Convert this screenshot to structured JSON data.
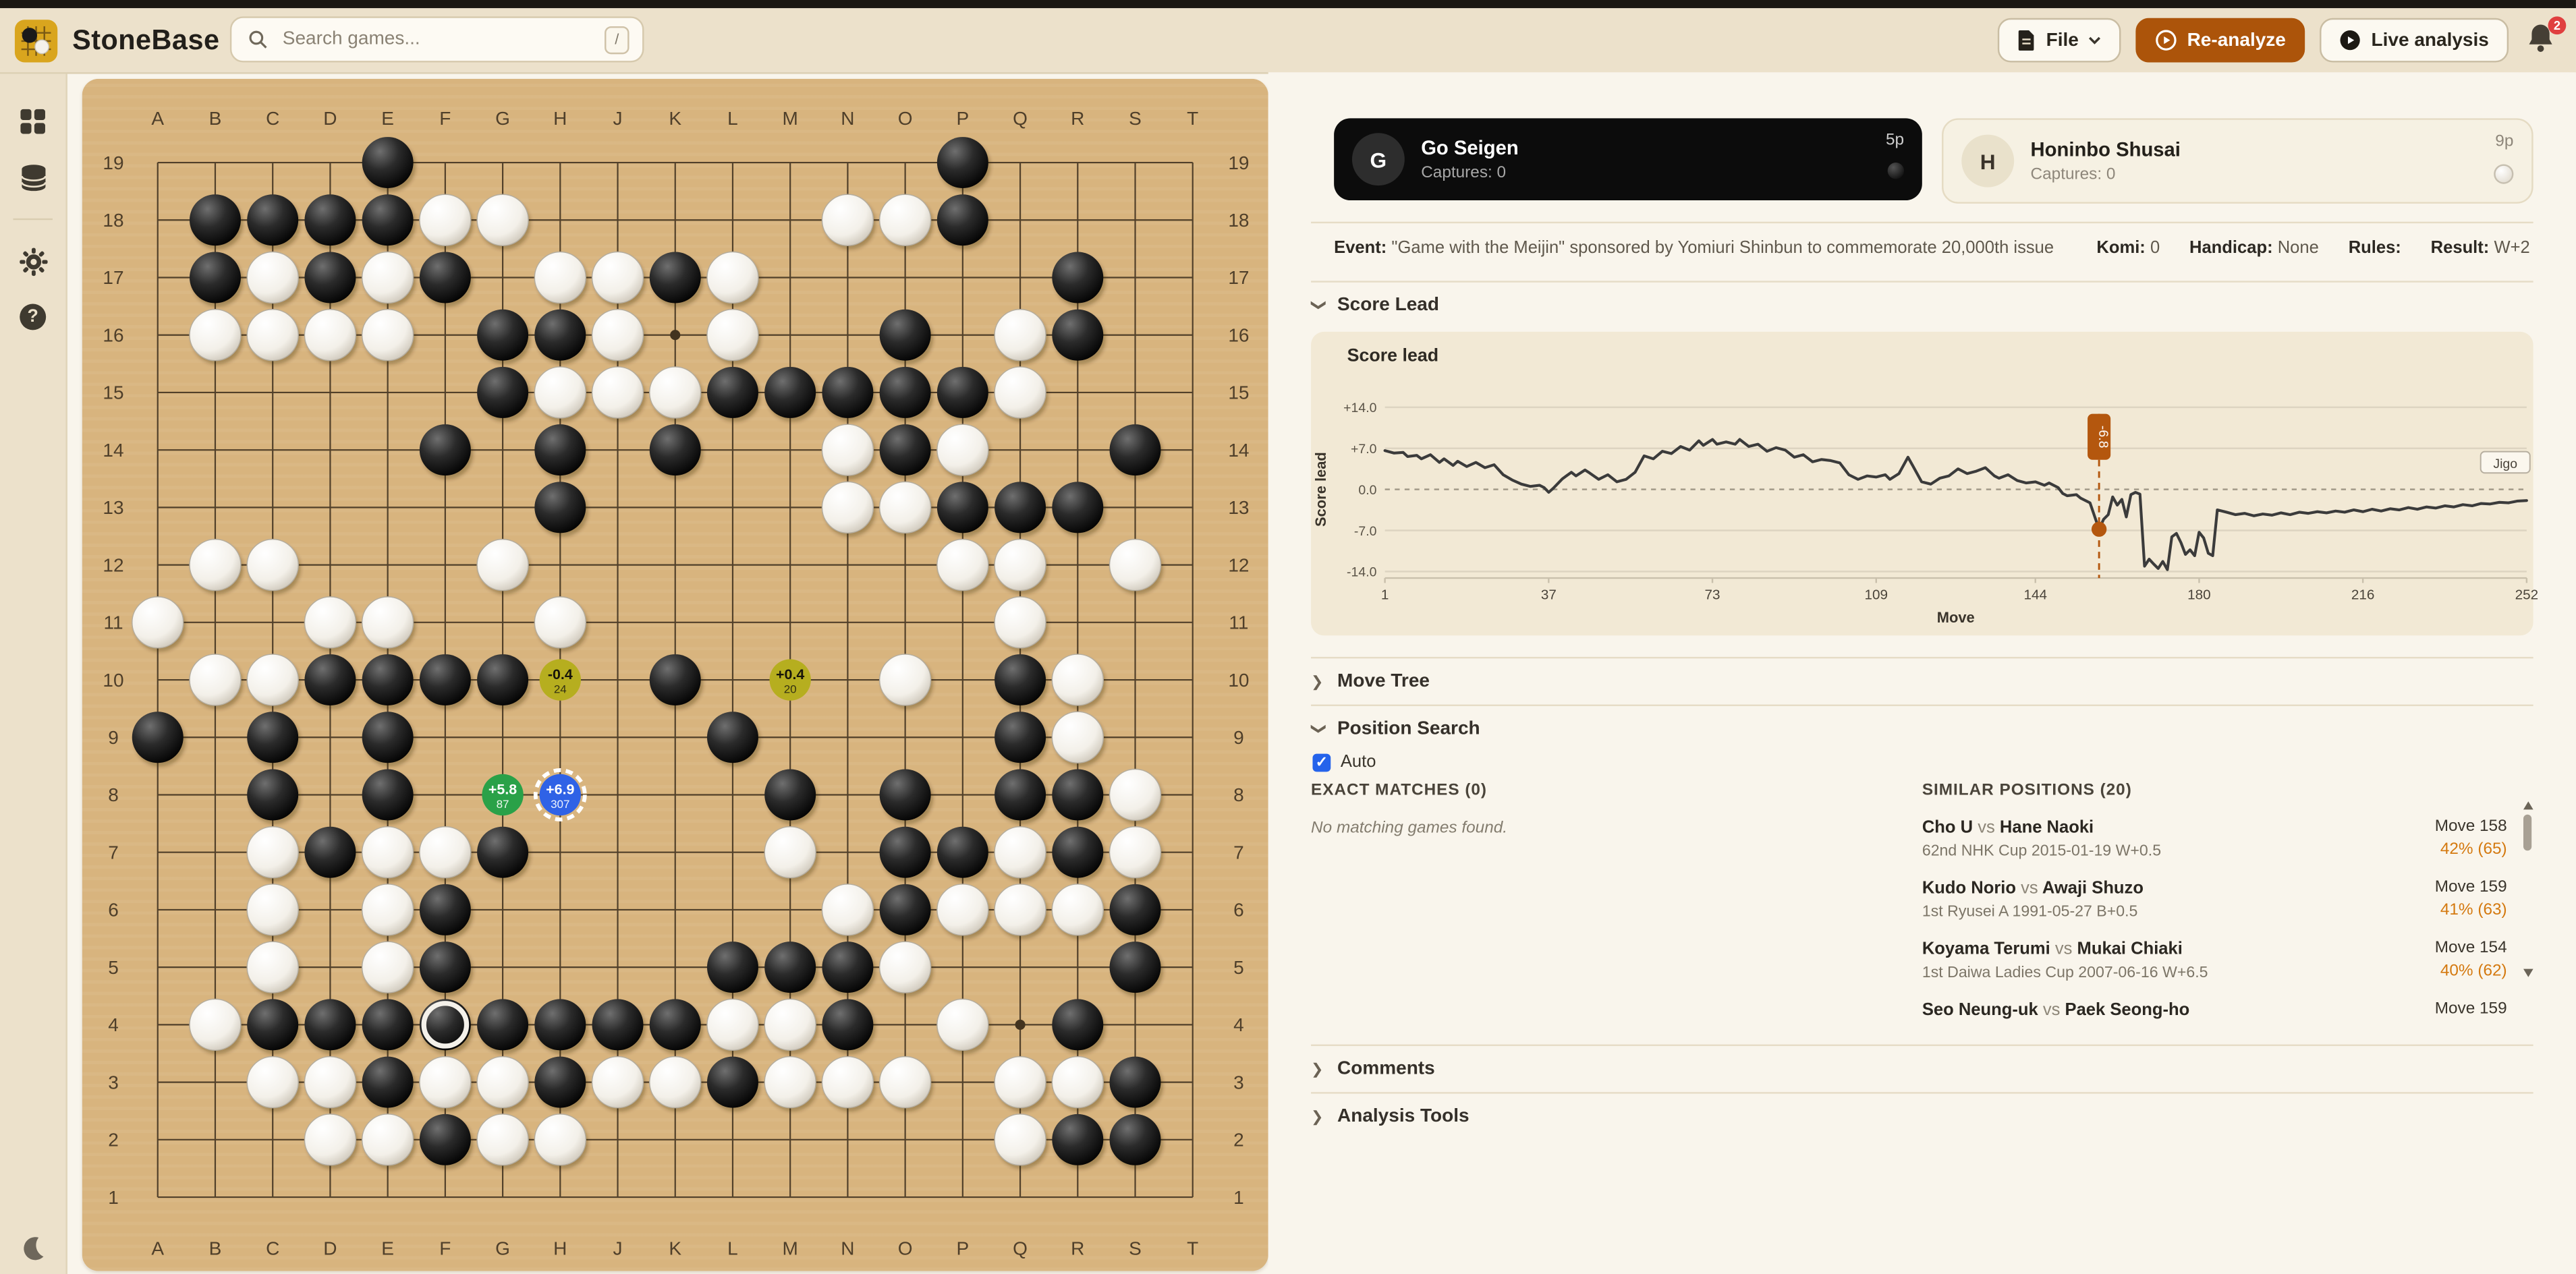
{
  "topbar": {
    "app_name": "StoneBase",
    "search_placeholder": "Search games...",
    "search_shortcut": "/",
    "file_label": "File",
    "reanalyze_label": "Re-analyze",
    "live_label": "Live analysis",
    "notification_count": "2"
  },
  "sidebar": {
    "icons": [
      "apps-grid-icon",
      "database-icon",
      "gear-icon",
      "help-icon",
      "moon-icon"
    ]
  },
  "players": {
    "black": {
      "initial": "G",
      "name": "Go Seigen",
      "captures": "Captures: 0",
      "rank": "5p"
    },
    "white": {
      "initial": "H",
      "name": "Honinbo Shusai",
      "captures": "Captures: 0",
      "rank": "9p"
    }
  },
  "game_meta": {
    "event_label": "Event:",
    "event": "\"Game with the Meijin\" sponsored by Yomiuri Shinbun to commemorate 20,000th issue",
    "komi_label": "Komi:",
    "komi": "0",
    "handicap_label": "Handicap:",
    "handicap": "None",
    "rules_label": "Rules:",
    "rules": "",
    "result_label": "Result:",
    "result": "W+2"
  },
  "sections": {
    "score_lead": "Score Lead",
    "move_tree": "Move Tree",
    "position_search": "Position Search",
    "comments": "Comments",
    "analysis_tools": "Analysis Tools",
    "auto_label": "Auto",
    "exact_heading": "EXACT MATCHES (0)",
    "exact_empty": "No matching games found.",
    "similar_heading": "SIMILAR POSITIONS (20)"
  },
  "similar_positions": [
    {
      "p1": "Cho U",
      "p2": "Hane Naoki",
      "detail": "62nd NHK Cup   2015-01-19   W+0.5",
      "move": "Move 158",
      "match": "42% (65)"
    },
    {
      "p1": "Kudo Norio",
      "p2": "Awaji Shuzo",
      "detail": "1st Ryusei A   1991-05-27   B+0.5",
      "move": "Move 159",
      "match": "41% (63)"
    },
    {
      "p1": "Koyama Terumi",
      "p2": "Mukai Chiaki",
      "detail": "1st Daiwa Ladies Cup   2007-06-16   W+6.5",
      "move": "Move 154",
      "match": "40% (62)"
    },
    {
      "p1": "Seo Neung-uk",
      "p2": "Paek Seong-ho",
      "detail": "",
      "move": "Move 159",
      "match": ""
    }
  ],
  "board": {
    "letters": [
      "A",
      "B",
      "C",
      "D",
      "E",
      "F",
      "G",
      "H",
      "J",
      "K",
      "L",
      "M",
      "N",
      "O",
      "P",
      "Q",
      "R",
      "S",
      "T"
    ],
    "numbers": [
      19,
      18,
      17,
      16,
      15,
      14,
      13,
      12,
      11,
      10,
      9,
      8,
      7,
      6,
      5,
      4,
      3,
      2,
      1
    ],
    "star_points": [
      "K16",
      "Q4"
    ],
    "last_move": "F4",
    "black_stones": [
      "E19",
      "P19",
      "B18",
      "C18",
      "D18",
      "E18",
      "P18",
      "B17",
      "D17",
      "F17",
      "K17",
      "R17",
      "G16",
      "H16",
      "O16",
      "R16",
      "G15",
      "L15",
      "M15",
      "N15",
      "O15",
      "P15",
      "F14",
      "H14",
      "K14",
      "O14",
      "S14",
      "H13",
      "P13",
      "Q13",
      "R13",
      "D10",
      "E10",
      "F10",
      "G10",
      "K10",
      "Q10",
      "A9",
      "C9",
      "E9",
      "L9",
      "Q9",
      "C8",
      "E8",
      "M8",
      "O8",
      "Q8",
      "R8",
      "D7",
      "G7",
      "O7",
      "P7",
      "R7",
      "F6",
      "O6",
      "S6",
      "F5",
      "L5",
      "M5",
      "N5",
      "S5",
      "C4",
      "D4",
      "E4",
      "F4",
      "G4",
      "H4",
      "J4",
      "K4",
      "N4",
      "R4",
      "E3",
      "H3",
      "L3",
      "S3",
      "F2",
      "R2",
      "S2"
    ],
    "white_stones": [
      "F18",
      "G18",
      "N18",
      "O18",
      "C17",
      "E17",
      "H17",
      "J17",
      "L17",
      "B16",
      "C16",
      "D16",
      "E16",
      "J16",
      "L16",
      "Q16",
      "H15",
      "J15",
      "K15",
      "Q15",
      "N14",
      "P14",
      "N13",
      "O13",
      "B12",
      "C12",
      "G12",
      "P12",
      "Q12",
      "S12",
      "A11",
      "D11",
      "E11",
      "H11",
      "Q11",
      "B10",
      "C10",
      "O10",
      "R10",
      "R9",
      "S8",
      "C7",
      "E7",
      "F7",
      "M7",
      "Q7",
      "S7",
      "C6",
      "E6",
      "N6",
      "P6",
      "Q6",
      "R6",
      "C5",
      "E5",
      "O5",
      "B4",
      "L4",
      "M4",
      "P4",
      "C3",
      "D3",
      "F3",
      "G3",
      "J3",
      "K3",
      "M3",
      "N3",
      "O3",
      "Q3",
      "R3",
      "D2",
      "E2",
      "G2",
      "H2",
      "Q2"
    ],
    "badges": [
      {
        "pos": "H10",
        "style": "yellow",
        "score": "-0.4",
        "visits": "24",
        "selected": false
      },
      {
        "pos": "M10",
        "style": "yellow",
        "score": "+0.4",
        "visits": "20",
        "selected": false
      },
      {
        "pos": "G8",
        "style": "green",
        "score": "+5.8",
        "visits": "87",
        "selected": false
      },
      {
        "pos": "H8",
        "style": "blue",
        "score": "+6.9",
        "visits": "307",
        "selected": true
      }
    ],
    "colors": {
      "wood": "#d8b47e",
      "line": "#51402a",
      "label": "#4f3f2a",
      "yellow": "#b6ae1f",
      "green": "#2aa148",
      "blue": "#2f62e6",
      "accent_orange": "#ac540a"
    }
  },
  "chart_data": {
    "type": "line",
    "title": "Score lead",
    "xlabel": "Move",
    "ylabel": "Score lead",
    "xlim": [
      1,
      252
    ],
    "ylim": [
      -14,
      14
    ],
    "grid": true,
    "yticks": [
      {
        "v": 14,
        "label": "+14.0"
      },
      {
        "v": 7,
        "label": "+7.0"
      },
      {
        "v": 0,
        "label": "0.0"
      },
      {
        "v": -7,
        "label": "-7.0"
      },
      {
        "v": -14,
        "label": "-14.0"
      }
    ],
    "xticks": [
      1,
      37,
      73,
      109,
      144,
      180,
      216,
      252
    ],
    "zero_annotation": "Jigo",
    "marker": {
      "move": 158,
      "value": -6.8,
      "label": "-6.8",
      "color": "#b4570e"
    },
    "series": [
      {
        "name": "Score lead",
        "color": "#3b3b3b",
        "points": [
          [
            1,
            6.6
          ],
          [
            3,
            6.2
          ],
          [
            5,
            6.3
          ],
          [
            6,
            5.6
          ],
          [
            8,
            5.8
          ],
          [
            9,
            5.2
          ],
          [
            11,
            5.9
          ],
          [
            13,
            4.6
          ],
          [
            14,
            5.2
          ],
          [
            16,
            4.1
          ],
          [
            17,
            4.8
          ],
          [
            19,
            3.9
          ],
          [
            21,
            4.6
          ],
          [
            23,
            3.7
          ],
          [
            25,
            4.2
          ],
          [
            27,
            2.5
          ],
          [
            29,
            1.6
          ],
          [
            31,
            0.9
          ],
          [
            33,
            0.5
          ],
          [
            35,
            0.7
          ],
          [
            36,
            0.3
          ],
          [
            37,
            -0.5
          ],
          [
            38,
            0.2
          ],
          [
            40,
            1.8
          ],
          [
            42,
            2.9
          ],
          [
            43,
            2.3
          ],
          [
            45,
            3.3
          ],
          [
            46,
            2.8
          ],
          [
            48,
            1.7
          ],
          [
            50,
            2.5
          ],
          [
            52,
            1.3
          ],
          [
            54,
            1.7
          ],
          [
            56,
            2.9
          ],
          [
            58,
            5.7
          ],
          [
            60,
            5.2
          ],
          [
            62,
            6.5
          ],
          [
            64,
            6.1
          ],
          [
            66,
            7.3
          ],
          [
            68,
            6.7
          ],
          [
            70,
            8.3
          ],
          [
            71,
            7.5
          ],
          [
            73,
            8.5
          ],
          [
            74,
            7.7
          ],
          [
            76,
            8.1
          ],
          [
            78,
            7.7
          ],
          [
            79,
            8.5
          ],
          [
            81,
            7.3
          ],
          [
            83,
            7.7
          ],
          [
            85,
            6.5
          ],
          [
            87,
            7.1
          ],
          [
            89,
            6.7
          ],
          [
            91,
            5.5
          ],
          [
            93,
            5.9
          ],
          [
            95,
            4.7
          ],
          [
            97,
            5.1
          ],
          [
            99,
            4.9
          ],
          [
            101,
            4.5
          ],
          [
            103,
            2.5
          ],
          [
            105,
            1.7
          ],
          [
            107,
            2.3
          ],
          [
            109,
            2.1
          ],
          [
            111,
            2.5
          ],
          [
            112,
            1.7
          ],
          [
            114,
            2.7
          ],
          [
            116,
            5.5
          ],
          [
            117,
            4.1
          ],
          [
            119,
            1.3
          ],
          [
            121,
            0.9
          ],
          [
            123,
            1.9
          ],
          [
            125,
            2.3
          ],
          [
            127,
            3.5
          ],
          [
            129,
            2.7
          ],
          [
            131,
            3.1
          ],
          [
            133,
            3.7
          ],
          [
            135,
            2.3
          ],
          [
            136,
            1.9
          ],
          [
            138,
            2.5
          ],
          [
            140,
            1.5
          ],
          [
            142,
            1.1
          ],
          [
            144,
            1.3
          ],
          [
            146,
            0.7
          ],
          [
            147,
            1.1
          ],
          [
            149,
            0.3
          ],
          [
            150,
            -0.7
          ],
          [
            151,
            -1.1
          ],
          [
            153,
            -0.9
          ],
          [
            154,
            -1.5
          ],
          [
            156,
            -2.3
          ],
          [
            158,
            -6.8
          ],
          [
            159,
            -5.1
          ],
          [
            160,
            -4.3
          ],
          [
            161,
            -1.3
          ],
          [
            162,
            -2.7
          ],
          [
            163,
            -1.7
          ],
          [
            164,
            -4.7
          ],
          [
            165,
            -0.9
          ],
          [
            166,
            -0.5
          ],
          [
            167,
            -0.8
          ],
          [
            168,
            -13.1
          ],
          [
            169,
            -11.9
          ],
          [
            170,
            -12.7
          ],
          [
            171,
            -13.5
          ],
          [
            172,
            -12.3
          ],
          [
            173,
            -13.7
          ],
          [
            174,
            -8.1
          ],
          [
            175,
            -7.5
          ],
          [
            176,
            -9.1
          ],
          [
            177,
            -11.1
          ],
          [
            178,
            -10.3
          ],
          [
            179,
            -11.3
          ],
          [
            180,
            -7.3
          ],
          [
            181,
            -8.3
          ],
          [
            182,
            -10.9
          ],
          [
            183,
            -11.3
          ],
          [
            184,
            -3.5
          ],
          [
            186,
            -3.9
          ],
          [
            188,
            -4.3
          ],
          [
            190,
            -4.1
          ],
          [
            192,
            -4.5
          ],
          [
            194,
            -4.2
          ],
          [
            196,
            -4.4
          ],
          [
            198,
            -4.0
          ],
          [
            200,
            -4.3
          ],
          [
            202,
            -3.9
          ],
          [
            204,
            -4.1
          ],
          [
            206,
            -3.8
          ],
          [
            208,
            -4.0
          ],
          [
            210,
            -3.7
          ],
          [
            212,
            -3.9
          ],
          [
            214,
            -3.5
          ],
          [
            216,
            -3.8
          ],
          [
            218,
            -3.4
          ],
          [
            220,
            -3.7
          ],
          [
            222,
            -3.3
          ],
          [
            224,
            -3.5
          ],
          [
            226,
            -3.1
          ],
          [
            228,
            -3.4
          ],
          [
            230,
            -3.0
          ],
          [
            232,
            -3.2
          ],
          [
            234,
            -2.8
          ],
          [
            236,
            -3.0
          ],
          [
            238,
            -2.6
          ],
          [
            240,
            -2.8
          ],
          [
            242,
            -2.4
          ],
          [
            244,
            -2.5
          ],
          [
            246,
            -2.2
          ],
          [
            248,
            -2.3
          ],
          [
            250,
            -2.0
          ],
          [
            252,
            -1.9
          ]
        ]
      }
    ]
  }
}
